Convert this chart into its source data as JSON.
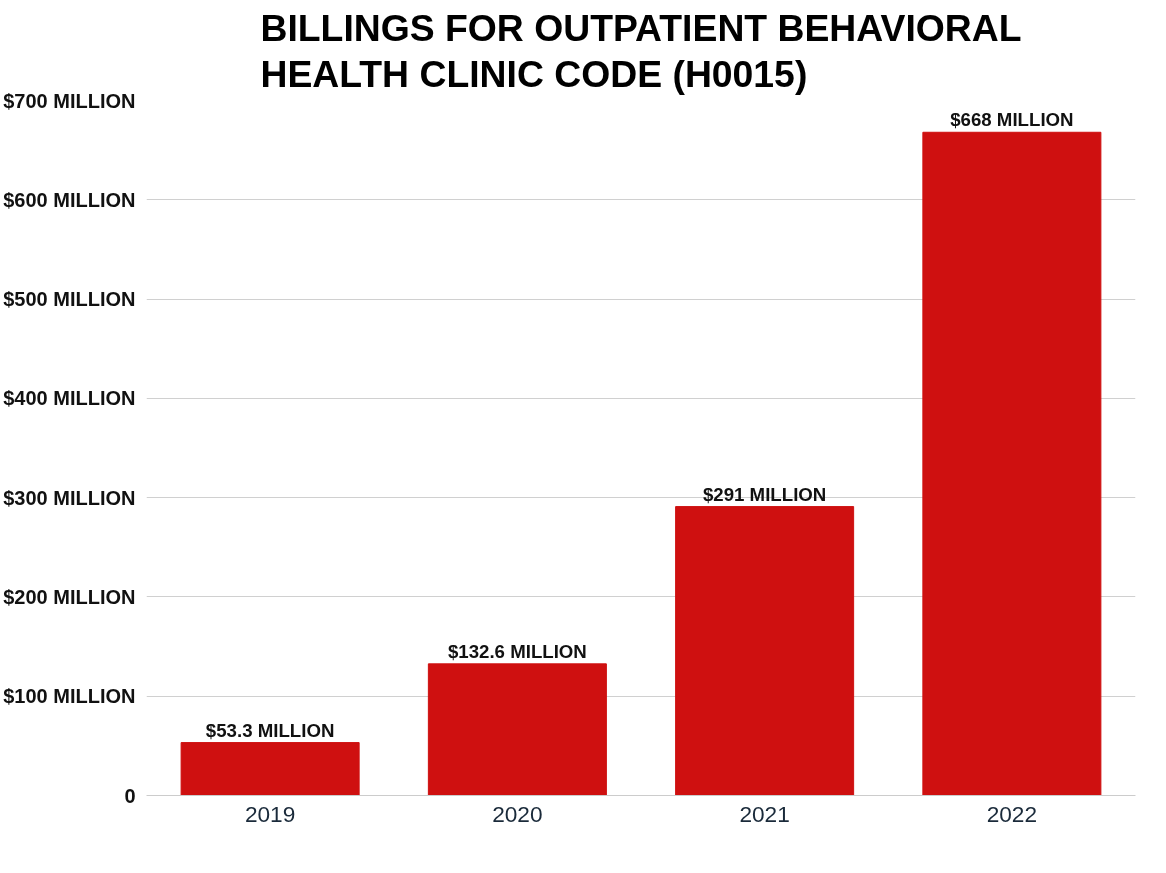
{
  "chart_data": {
    "type": "bar",
    "title": "BILLINGS FOR OUTPATIENT BEHAVIORAL HEALTH CLINIC CODE (H0015)",
    "categories": [
      "2019",
      "2020",
      "2021",
      "2022"
    ],
    "values": [
      53.3,
      132.6,
      291,
      668
    ],
    "value_labels": [
      "$53.3 MILLION",
      "$132.6 MILLION",
      "$291 MILLION",
      "$668 MILLION"
    ],
    "color": "#cf1010",
    "ylim": [
      0,
      700
    ],
    "yticks": [
      {
        "value": 0,
        "label": "0"
      },
      {
        "value": 100,
        "label": "$100 MILLION"
      },
      {
        "value": 200,
        "label": "$200 MILLION"
      },
      {
        "value": 300,
        "label": "$300 MILLION"
      },
      {
        "value": 400,
        "label": "$400 MILLION"
      },
      {
        "value": 500,
        "label": "$500 MILLION"
      },
      {
        "value": 600,
        "label": "$600 MILLION"
      },
      {
        "value": 700,
        "label": "$700 MILLION"
      }
    ],
    "grid": "y"
  }
}
